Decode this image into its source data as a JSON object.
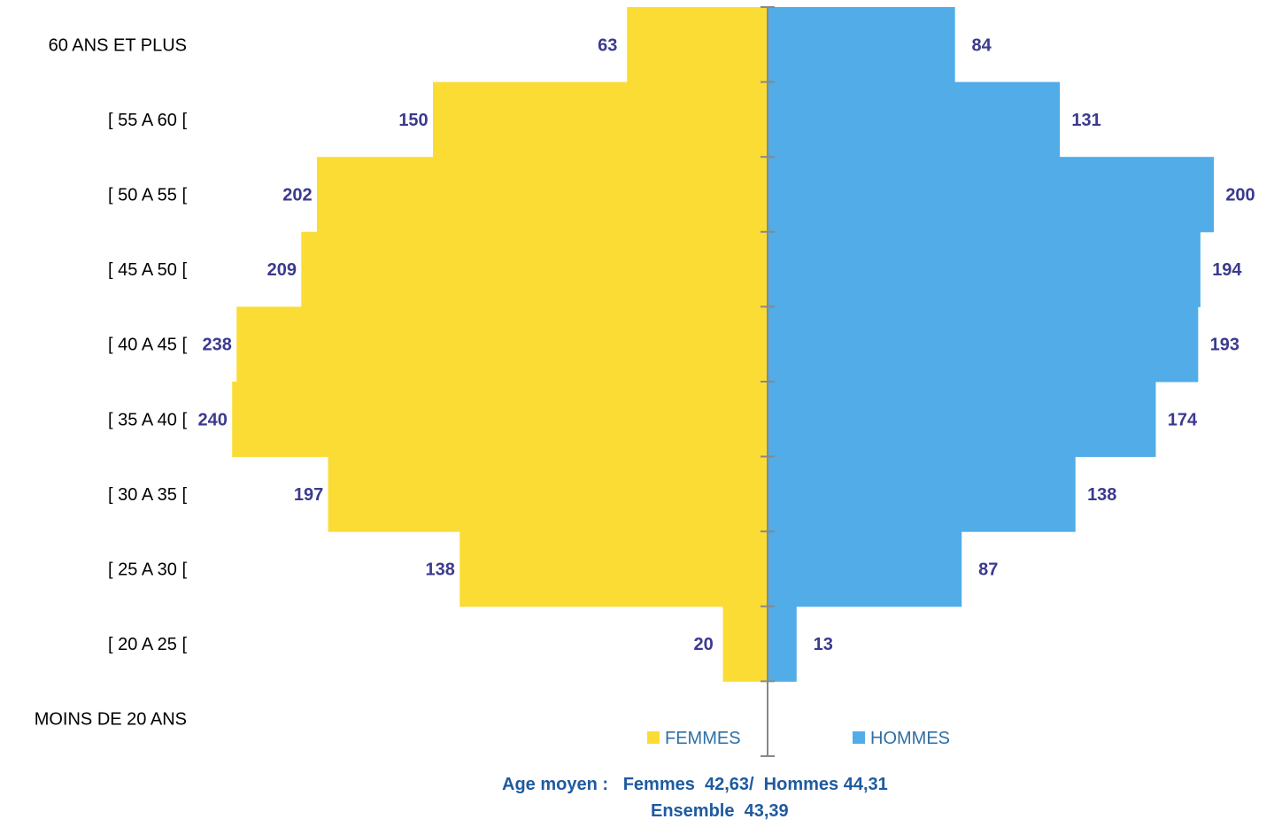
{
  "chart_data": {
    "type": "bar",
    "orientation": "horizontal-pyramid",
    "categories": [
      "60 ANS ET PLUS",
      "[ 55 A 60 [",
      "[ 50 A 55 [",
      "[ 45 A 50 [",
      "[ 40 A 45 [",
      "[ 35 A 40 [",
      "[ 30 A 35 [",
      "[ 25 A 30 [",
      "[ 20 A 25 [",
      "MOINS DE 20 ANS"
    ],
    "series": [
      {
        "name": "FEMMES",
        "color": "#fbdc35",
        "values": [
          63,
          150,
          202,
          209,
          238,
          240,
          197,
          138,
          20,
          null
        ]
      },
      {
        "name": "HOMMES",
        "color": "#51ace8",
        "values": [
          84,
          131,
          200,
          194,
          193,
          174,
          138,
          87,
          13,
          null
        ]
      }
    ],
    "label_color": "#3b3a8f",
    "legend": "bottom"
  },
  "footer": {
    "line1": "Age moyen :   Femmes  42,63/  Hommes 44,31",
    "line2": "Ensemble  43,39"
  }
}
